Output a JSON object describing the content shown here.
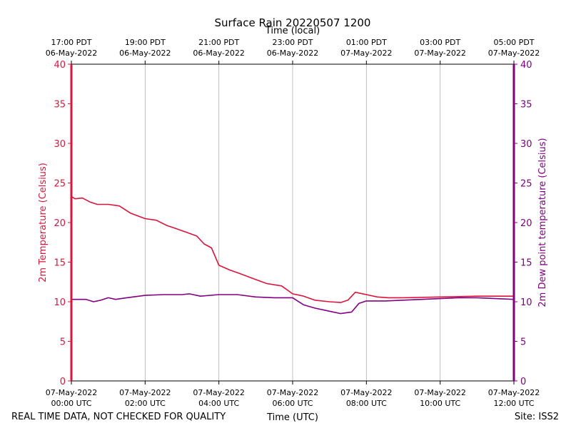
{
  "chart_data": {
    "type": "line",
    "title": "Surface Rain 20220507 1200",
    "top_axis_label": "Time (local)",
    "xlabel": "Time (UTC)",
    "ylabel_left": "2m Temperature (Celsius)",
    "ylabel_right": "2m Dew point temperature (Celsius)",
    "ylim_left": [
      0,
      40
    ],
    "ylim_right": [
      0,
      40
    ],
    "y_ticks": [
      "0",
      "5",
      "10",
      "15",
      "20",
      "25",
      "30",
      "35",
      "40"
    ],
    "xlim_hours": [
      0,
      12
    ],
    "grid": "vertical",
    "bottom_ticks": [
      {
        "hour": 0,
        "date": "07-May-2022",
        "time": "00:00 UTC"
      },
      {
        "hour": 2,
        "date": "07-May-2022",
        "time": "02:00 UTC"
      },
      {
        "hour": 4,
        "date": "07-May-2022",
        "time": "04:00 UTC"
      },
      {
        "hour": 6,
        "date": "07-May-2022",
        "time": "06:00 UTC"
      },
      {
        "hour": 8,
        "date": "07-May-2022",
        "time": "08:00 UTC"
      },
      {
        "hour": 10,
        "date": "07-May-2022",
        "time": "10:00 UTC"
      },
      {
        "hour": 12,
        "date": "07-May-2022",
        "time": "12:00 UTC"
      }
    ],
    "top_ticks": [
      {
        "hour": 0,
        "time": "17:00 PDT",
        "date": "06-May-2022"
      },
      {
        "hour": 2,
        "time": "19:00 PDT",
        "date": "06-May-2022"
      },
      {
        "hour": 4,
        "time": "21:00 PDT",
        "date": "06-May-2022"
      },
      {
        "hour": 6,
        "time": "23:00 PDT",
        "date": "06-May-2022"
      },
      {
        "hour": 8,
        "time": "01:00 PDT",
        "date": "07-May-2022"
      },
      {
        "hour": 10,
        "time": "03:00 PDT",
        "date": "07-May-2022"
      },
      {
        "hour": 12,
        "time": "05:00 PDT",
        "date": "07-May-2022"
      }
    ],
    "series": [
      {
        "name": "2m Temperature",
        "color": "#dc143c",
        "x": [
          0,
          0.1,
          0.3,
          0.5,
          0.7,
          1.0,
          1.3,
          1.6,
          2.0,
          2.3,
          2.6,
          2.8,
          3.1,
          3.4,
          3.6,
          3.8,
          4.0,
          4.3,
          4.6,
          5.0,
          5.3,
          5.7,
          6.0,
          6.3,
          6.6,
          7.0,
          7.3,
          7.5,
          7.7,
          8.0,
          8.3,
          8.6,
          9.0,
          10.0,
          11.0,
          12.0
        ],
        "y": [
          23.3,
          23.0,
          23.1,
          22.6,
          22.3,
          22.3,
          22.1,
          21.2,
          20.5,
          20.3,
          19.6,
          19.3,
          18.8,
          18.3,
          17.3,
          16.8,
          14.6,
          14.0,
          13.5,
          12.8,
          12.3,
          12.0,
          11.0,
          10.7,
          10.2,
          10.0,
          9.9,
          10.2,
          11.2,
          10.9,
          10.6,
          10.5,
          10.5,
          10.6,
          10.7,
          10.7
        ]
      },
      {
        "name": "2m Dew point temperature",
        "color": "#800080",
        "x": [
          0,
          0.2,
          0.4,
          0.6,
          0.8,
          1.0,
          1.2,
          1.5,
          2.0,
          2.5,
          3.0,
          3.2,
          3.5,
          4.0,
          4.5,
          5.0,
          5.5,
          6.0,
          6.3,
          6.6,
          7.0,
          7.3,
          7.6,
          7.8,
          8.0,
          8.5,
          9.0,
          9.5,
          10.0,
          10.5,
          11.0,
          11.5,
          12.0
        ],
        "y": [
          10.3,
          10.3,
          10.3,
          10.0,
          10.2,
          10.5,
          10.3,
          10.5,
          10.8,
          10.9,
          10.9,
          11.0,
          10.7,
          10.9,
          10.9,
          10.6,
          10.5,
          10.5,
          9.6,
          9.2,
          8.8,
          8.5,
          8.7,
          9.8,
          10.1,
          10.1,
          10.2,
          10.3,
          10.4,
          10.5,
          10.5,
          10.4,
          10.3
        ]
      }
    ]
  },
  "footer": {
    "left_note": "REAL TIME DATA, NOT CHECKED FOR QUALITY",
    "site": "Site: ISS2"
  },
  "colors": {
    "left_axis": "#dc143c",
    "right_axis": "#800080",
    "grid": "#b0b0b0"
  }
}
